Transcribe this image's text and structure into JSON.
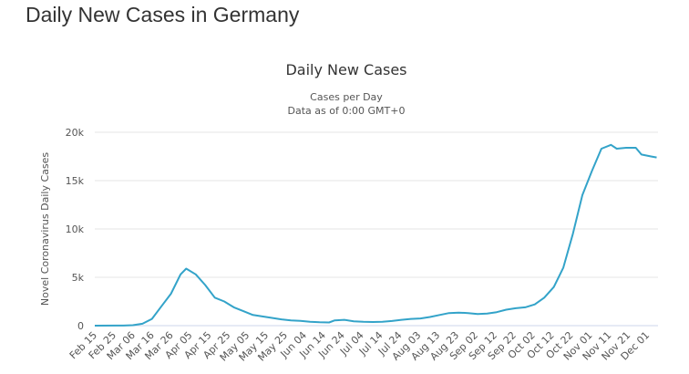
{
  "page_title": "Daily New Cases in Germany",
  "chart_data": {
    "type": "line",
    "title": "Daily New Cases",
    "subtitle": [
      "Cases per Day",
      "Data as of 0:00 GMT+0"
    ],
    "ylabel": "Novel Coronavirus Daily Cases",
    "xlabel": "",
    "ylim": [
      0,
      20000
    ],
    "yticks": [
      0,
      5000,
      10000,
      15000,
      20000
    ],
    "ytick_labels": [
      "0",
      "5k",
      "10k",
      "15k",
      "20k"
    ],
    "xtick_labels": [
      "Feb 15",
      "Feb 25",
      "Mar 06",
      "Mar 16",
      "Mar 26",
      "Apr 05",
      "Apr 15",
      "Apr 25",
      "May 05",
      "May 15",
      "May 25",
      "Jun 04",
      "Jun 14",
      "Jun 24",
      "Jul 04",
      "Jul 14",
      "Jul 24",
      "Aug 03",
      "Aug 13",
      "Aug 23",
      "Sep 02",
      "Sep 12",
      "Sep 22",
      "Oct 02",
      "Oct 12",
      "Oct 22",
      "Nov 01",
      "Nov 11",
      "Nov 21",
      "Dec 01"
    ],
    "grid": true,
    "legend": "none",
    "line_color": "#33a3c9",
    "x": [
      "2020-02-15",
      "2020-03-01",
      "2020-03-06",
      "2020-03-11",
      "2020-03-16",
      "2020-03-21",
      "2020-03-26",
      "2020-03-31",
      "2020-04-03",
      "2020-04-08",
      "2020-04-13",
      "2020-04-18",
      "2020-04-23",
      "2020-04-28",
      "2020-05-03",
      "2020-05-08",
      "2020-05-13",
      "2020-05-18",
      "2020-05-23",
      "2020-05-28",
      "2020-06-02",
      "2020-06-07",
      "2020-06-12",
      "2020-06-17",
      "2020-06-20",
      "2020-06-25",
      "2020-06-30",
      "2020-07-05",
      "2020-07-10",
      "2020-07-15",
      "2020-07-20",
      "2020-07-25",
      "2020-07-30",
      "2020-08-04",
      "2020-08-09",
      "2020-08-14",
      "2020-08-19",
      "2020-08-24",
      "2020-08-29",
      "2020-09-03",
      "2020-09-08",
      "2020-09-13",
      "2020-09-18",
      "2020-09-23",
      "2020-09-28",
      "2020-10-03",
      "2020-10-08",
      "2020-10-13",
      "2020-10-18",
      "2020-10-23",
      "2020-10-28",
      "2020-11-02",
      "2020-11-07",
      "2020-11-12",
      "2020-11-15",
      "2020-11-20",
      "2020-11-25",
      "2020-11-28",
      "2020-12-03",
      "2020-12-06"
    ],
    "series": [
      {
        "values": [
          0,
          10,
          50,
          200,
          700,
          2000,
          3300,
          5300,
          5900,
          5300,
          4200,
          2900,
          2500,
          1900,
          1500,
          1100,
          950,
          800,
          650,
          550,
          500,
          400,
          350,
          330,
          550,
          600,
          450,
          400,
          380,
          400,
          480,
          600,
          700,
          750,
          900,
          1100,
          1300,
          1350,
          1300,
          1200,
          1250,
          1400,
          1650,
          1800,
          1900,
          2200,
          2900,
          4000,
          6000,
          9500,
          13500,
          16000,
          18300,
          18700,
          18300,
          18400,
          18400,
          17700,
          17500,
          17400
        ]
      }
    ]
  }
}
